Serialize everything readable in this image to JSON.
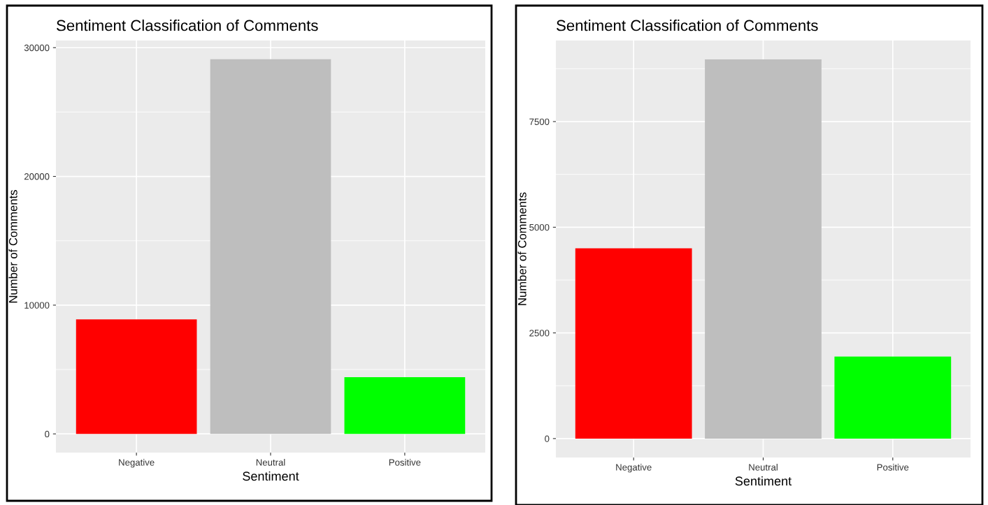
{
  "chart_data": [
    {
      "type": "bar",
      "title": "Sentiment Classification of Comments",
      "xlabel": "Sentiment",
      "ylabel": "Number of Comments",
      "categories": [
        "Negative",
        "Neutral",
        "Positive"
      ],
      "values": [
        8900,
        29100,
        4400
      ],
      "colors": [
        "#ff0000",
        "#bebebe",
        "#00ff00"
      ],
      "ylim": [
        -1455,
        30555
      ],
      "yticks": [
        0,
        {
          "value": 5000,
          "label": null
        },
        10000,
        {
          "value": 15000,
          "label": null
        },
        20000,
        {
          "value": 25000,
          "label": null
        },
        30000
      ],
      "grid": true
    },
    {
      "type": "bar",
      "title": "Sentiment Classification of Comments",
      "xlabel": "Sentiment",
      "ylabel": "Number of Comments",
      "categories": [
        "Negative",
        "Neutral",
        "Positive"
      ],
      "values": [
        4500,
        8970,
        1940
      ],
      "colors": [
        "#ff0000",
        "#bebebe",
        "#00ff00"
      ],
      "ylim": [
        -448,
        9418
      ],
      "yticks": [
        0,
        {
          "value": 1250,
          "label": null
        },
        2500,
        {
          "value": 3750,
          "label": null
        },
        5000,
        {
          "value": 6250,
          "label": null
        },
        7500,
        {
          "value": 8750,
          "label": null
        }
      ],
      "grid": true
    }
  ]
}
